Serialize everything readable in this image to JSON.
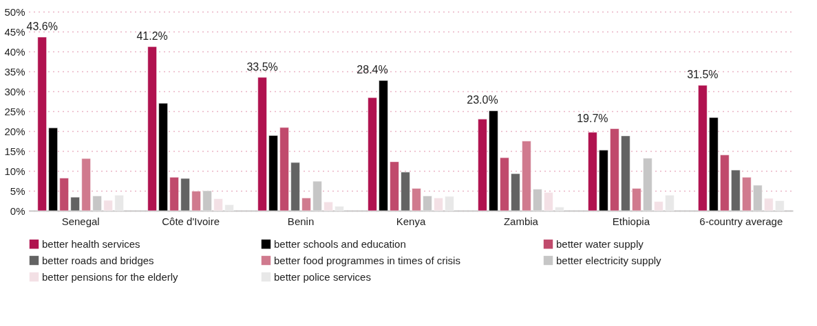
{
  "chart_data": {
    "type": "bar",
    "categories": [
      "Senegal",
      "Côte d'Ivoire",
      "Benin",
      "Kenya",
      "Zambia",
      "Ethiopia",
      "6-country average"
    ],
    "series": [
      {
        "name": "better health services",
        "color": "#b0124f",
        "values": [
          43.6,
          41.2,
          33.5,
          28.4,
          23.0,
          19.7,
          31.5
        ],
        "value_labels": [
          "43.6%",
          "41.2%",
          "33.5%",
          "28.4%",
          "23.0%",
          "19.7%",
          "31.5%"
        ]
      },
      {
        "name": "better schools and education",
        "color": "#000000",
        "values": [
          20.8,
          27.0,
          18.9,
          32.7,
          25.1,
          15.2,
          23.4
        ]
      },
      {
        "name": "better water supply",
        "color": "#c04a6c",
        "values": [
          8.2,
          8.4,
          20.9,
          12.3,
          13.3,
          20.6,
          14.0
        ]
      },
      {
        "name": "better roads and bridges",
        "color": "#636363",
        "values": [
          3.4,
          8.1,
          12.1,
          9.7,
          9.3,
          18.8,
          10.2
        ]
      },
      {
        "name": "better food programmes in times of crisis",
        "color": "#d07a8e",
        "values": [
          13.1,
          4.9,
          3.2,
          5.6,
          17.5,
          5.6,
          8.4
        ]
      },
      {
        "name": "better electricity supply",
        "color": "#c6c6c6",
        "values": [
          3.7,
          5.0,
          7.4,
          3.7,
          5.4,
          13.2,
          6.4
        ]
      },
      {
        "name": "better pensions for the elderly",
        "color": "#f3e0e5",
        "values": [
          2.6,
          3.0,
          2.2,
          3.2,
          4.6,
          2.3,
          3.1
        ]
      },
      {
        "name": "better police services",
        "color": "#e8e8e8",
        "values": [
          3.9,
          1.5,
          1.1,
          3.6,
          0.9,
          3.9,
          2.5
        ]
      }
    ],
    "ylim": [
      0,
      50
    ],
    "yticks": [
      {
        "value": 0,
        "label": "0%"
      },
      {
        "value": 5,
        "label": "5%"
      },
      {
        "value": 10,
        "label": "10%"
      },
      {
        "value": 15,
        "label": "15%"
      },
      {
        "value": 20,
        "label": "20%"
      },
      {
        "value": 25,
        "label": "25%"
      },
      {
        "value": 30,
        "label": "30%"
      },
      {
        "value": 35,
        "label": "35%"
      },
      {
        "value": 40,
        "label": "40%"
      },
      {
        "value": 45,
        "label": "45%"
      },
      {
        "value": 50,
        "label": "50%"
      }
    ],
    "grid": "y",
    "legend": "bottom"
  }
}
